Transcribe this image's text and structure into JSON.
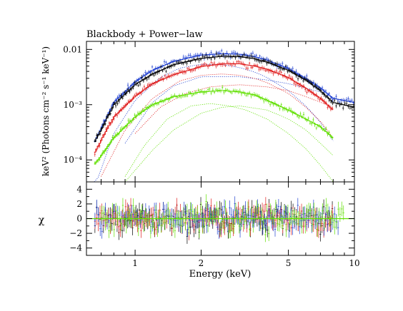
{
  "chart_data": [
    {
      "type": "line",
      "panel": "spectrum",
      "title": "Blackbody + Power−law",
      "ylabel": "keV² (Photons cm⁻² s⁻¹ keV⁻¹)",
      "xlabel": "",
      "xscale": "log",
      "yscale": "log",
      "xlim": [
        0.6,
        10
      ],
      "ylim": [
        4e-05,
        0.014
      ],
      "xticks": [
        {
          "value": 1,
          "label": "1"
        },
        {
          "value": 2,
          "label": "2"
        },
        {
          "value": 5,
          "label": "5"
        },
        {
          "value": 10,
          "label": "10"
        }
      ],
      "yticks": [
        {
          "value": 0.0001,
          "label": "10⁻⁴"
        },
        {
          "value": 0.001,
          "label": "10⁻³"
        },
        {
          "value": 0.01,
          "label": "0.01"
        }
      ],
      "grid": false,
      "series": [
        {
          "color": "#2040d0",
          "kind": "data+model",
          "x": [
            0.65,
            0.8,
            1.0,
            1.2,
            1.5,
            2.0,
            2.5,
            3.0,
            3.5,
            4.0,
            5.0,
            6.0,
            7.0,
            8.0,
            10.0
          ],
          "values": [
            0.0002,
            0.0011,
            0.0026,
            0.0042,
            0.0061,
            0.0079,
            0.0084,
            0.0082,
            0.0074,
            0.0064,
            0.0045,
            0.003,
            0.002,
            0.0013,
            0.0011
          ]
        },
        {
          "color": "#000000",
          "kind": "data+model",
          "x": [
            0.65,
            0.8,
            1.0,
            1.2,
            1.5,
            2.0,
            2.5,
            3.0,
            3.5,
            4.0,
            5.0,
            6.0,
            7.0,
            8.0,
            10.0
          ],
          "values": [
            0.0002,
            0.001,
            0.0023,
            0.0036,
            0.0053,
            0.0069,
            0.0075,
            0.0074,
            0.0068,
            0.0059,
            0.0042,
            0.0028,
            0.0018,
            0.0011,
            0.0009
          ]
        },
        {
          "color": "#e02020",
          "kind": "data+model",
          "x": [
            0.65,
            0.8,
            1.0,
            1.2,
            1.5,
            2.0,
            2.5,
            3.0,
            3.5,
            4.0,
            5.0,
            6.0,
            7.0,
            8.0
          ],
          "values": [
            0.00013,
            0.0006,
            0.0014,
            0.0024,
            0.0035,
            0.0049,
            0.0055,
            0.0055,
            0.005,
            0.0044,
            0.0031,
            0.002,
            0.0013,
            0.0008
          ]
        },
        {
          "color": "#60e000",
          "kind": "data+model",
          "x": [
            0.65,
            0.8,
            1.0,
            1.2,
            1.5,
            2.0,
            2.5,
            3.0,
            3.5,
            4.0,
            5.0,
            6.0,
            7.0,
            8.0
          ],
          "values": [
            8e-05,
            0.00025,
            0.0006,
            0.001,
            0.0014,
            0.0017,
            0.0018,
            0.0017,
            0.0015,
            0.0012,
            0.0008,
            0.00055,
            0.0004,
            0.00025
          ]
        },
        {
          "color": "#2040d0",
          "kind": "component-dotted",
          "x": [
            0.65,
            0.8,
            1.0,
            1.3,
            1.6,
            2.0,
            2.5,
            3.0,
            3.5,
            4.0,
            5.0,
            6.0,
            7.0,
            8.0
          ],
          "values": [
            3e-05,
            0.0003,
            0.0012,
            0.0031,
            0.0046,
            0.0054,
            0.0053,
            0.0047,
            0.0039,
            0.0031,
            0.0018,
            0.00095,
            0.00048,
            0.00022
          ]
        },
        {
          "color": "#2040d0",
          "kind": "component-dotted",
          "x": [
            0.9,
            1.2,
            1.5,
            2.0,
            3.0,
            4.0,
            5.0,
            6.0,
            7.0
          ],
          "values": [
            0.0002,
            0.0011,
            0.0022,
            0.0032,
            0.0032,
            0.0028,
            0.0024,
            0.002,
            0.0017
          ]
        },
        {
          "color": "#e02020",
          "kind": "component-dotted",
          "x": [
            0.7,
            0.9,
            1.2,
            1.6,
            2.0,
            2.5,
            3.0,
            3.5,
            4.0,
            5.0,
            6.0,
            7.0,
            8.0
          ],
          "values": [
            5e-05,
            0.00035,
            0.0013,
            0.0027,
            0.0034,
            0.0036,
            0.0034,
            0.003,
            0.0025,
            0.0016,
            0.0009,
            0.0005,
            0.00025
          ]
        },
        {
          "color": "#e02020",
          "kind": "component-dotted",
          "x": [
            1.0,
            1.3,
            1.7,
            2.2,
            3.0,
            4.0,
            5.0,
            6.0,
            8.0
          ],
          "values": [
            0.0003,
            0.0009,
            0.0016,
            0.0021,
            0.0023,
            0.0021,
            0.0018,
            0.0014,
            0.0009
          ]
        },
        {
          "color": "#60e000",
          "kind": "component-dotted",
          "x": [
            0.9,
            1.1,
            1.4,
            1.8,
            2.2,
            2.7,
            3.2,
            4.0,
            5.0,
            6.0,
            7.0,
            8.0
          ],
          "values": [
            5e-05,
            0.00018,
            0.00055,
            0.00095,
            0.00105,
            0.00095,
            0.0008,
            0.00055,
            0.0003,
            0.00016,
            8e-05,
            4e-05
          ]
        },
        {
          "color": "#60e000",
          "kind": "component-dotted",
          "x": [
            0.9,
            1.2,
            1.5,
            2.0,
            2.5,
            3.0,
            4.0,
            5.0,
            6.0,
            7.0,
            8.0
          ],
          "values": [
            4e-05,
            0.00015,
            0.00035,
            0.0007,
            0.0009,
            0.00095,
            0.0008,
            0.00055,
            0.00035,
            0.0002,
            0.00012
          ]
        }
      ]
    },
    {
      "type": "scatter",
      "panel": "residuals",
      "xlabel": "Energy (keV)",
      "ylabel": "χ",
      "xscale": "log",
      "xlim": [
        0.6,
        10
      ],
      "ylim": [
        -5,
        5
      ],
      "xticks": [
        {
          "value": 1,
          "label": "1"
        },
        {
          "value": 2,
          "label": "2"
        },
        {
          "value": 5,
          "label": "5"
        },
        {
          "value": 10,
          "label": "10"
        }
      ],
      "yticks": [
        {
          "value": -4,
          "label": "−4"
        },
        {
          "value": -2,
          "label": "−2"
        },
        {
          "value": 0,
          "label": "0"
        },
        {
          "value": 2,
          "label": "2"
        },
        {
          "value": 4,
          "label": "4"
        }
      ],
      "zero_line_color": "#60e000",
      "series": [
        {
          "color": "#000000",
          "x_range": [
            0.65,
            8.0
          ],
          "spread": 1.0
        },
        {
          "color": "#e02020",
          "x_range": [
            0.65,
            8.0
          ],
          "spread": 1.0
        },
        {
          "color": "#2040d0",
          "x_range": [
            0.65,
            8.5
          ],
          "spread": 1.0
        },
        {
          "color": "#60e000",
          "x_range": [
            0.7,
            9.0
          ],
          "spread": 1.0
        }
      ]
    }
  ]
}
